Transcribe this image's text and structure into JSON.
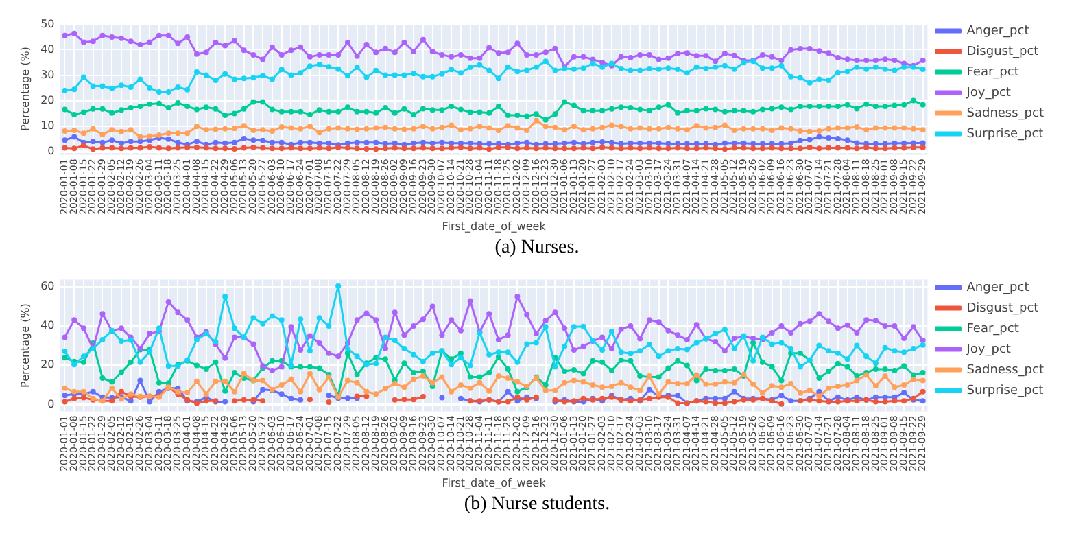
{
  "chart_data": [
    {
      "type": "line",
      "xlabel": "First_date_of_week",
      "ylabel": "Percentage (%)",
      "annotations": [
        "(a) Nurses."
      ],
      "categories": [
        "2020-01-01",
        "2020-01-08",
        "2020-01-15",
        "2020-01-22",
        "2020-01-29",
        "2020-02-05",
        "2020-02-12",
        "2020-02-19",
        "2020-02-26",
        "2020-03-04",
        "2020-03-11",
        "2020-03-18",
        "2020-03-25",
        "2020-04-01",
        "2020-04-08",
        "2020-04-15",
        "2020-04-22",
        "2020-04-29",
        "2020-05-06",
        "2020-05-13",
        "2020-05-20",
        "2020-05-27",
        "2020-06-03",
        "2020-06-10",
        "2020-06-17",
        "2020-06-24",
        "2020-07-01",
        "2020-07-08",
        "2020-07-15",
        "2020-07-22",
        "2020-07-29",
        "2020-08-05",
        "2020-08-12",
        "2020-08-19",
        "2020-08-26",
        "2020-09-02",
        "2020-09-09",
        "2020-09-16",
        "2020-09-23",
        "2020-09-30",
        "2020-10-07",
        "2020-10-14",
        "2020-10-21",
        "2020-10-28",
        "2020-11-04",
        "2020-11-11",
        "2020-11-18",
        "2020-11-25",
        "2020-12-02",
        "2020-12-09",
        "2020-12-16",
        "2020-12-23",
        "2020-12-30",
        "2021-01-06",
        "2021-01-13",
        "2021-01-20",
        "2021-01-27",
        "2021-02-03",
        "2021-02-10",
        "2021-02-17",
        "2021-02-24",
        "2021-03-03",
        "2021-03-10",
        "2021-03-17",
        "2021-03-24",
        "2021-03-31",
        "2021-04-07",
        "2021-04-14",
        "2021-04-21",
        "2021-04-28",
        "2021-05-05",
        "2021-05-12",
        "2021-05-19",
        "2021-05-26",
        "2021-06-02",
        "2021-06-09",
        "2021-06-16",
        "2021-06-23",
        "2021-06-30",
        "2021-07-07",
        "2021-07-14",
        "2021-07-21",
        "2021-07-28",
        "2021-08-04",
        "2021-08-11",
        "2021-08-18",
        "2021-08-25",
        "2021-09-01",
        "2021-09-08",
        "2021-09-15",
        "2021-09-22",
        "2021-09-29"
      ],
      "series": [
        {
          "name": "Anger_pct",
          "color": "#636efa",
          "values": [
            4.4,
            5.7,
            3.5,
            3.9,
            3.5,
            4.4,
            3.2,
            3.9,
            3.9,
            4.4,
            5.3,
            4.8,
            3.5,
            2.7,
            3.9,
            2.7,
            3.5,
            3.2,
            3.5,
            5,
            4.4,
            4.3,
            3.5,
            3.5,
            2.7,
            3.5,
            3.5,
            3.2,
            3.2,
            2.5,
            3.2,
            3.5,
            3.5,
            3.5,
            3,
            3.2,
            2.7,
            3.2,
            3.5,
            3.2,
            3.5,
            3.2,
            3.2,
            3.2,
            3,
            3,
            3,
            2.7,
            3.2,
            3.5,
            2.7,
            3,
            3,
            3.2,
            3.5,
            3,
            3.5,
            3.7,
            3.5,
            3,
            3.2,
            3.2,
            3.2,
            3.2,
            3,
            3,
            3,
            3,
            3,
            2.7,
            3.2,
            3.2,
            3.2,
            3,
            3,
            3,
            3,
            3.2,
            4.3,
            4.6,
            5.7,
            5.3,
            5,
            4.4,
            3.3,
            3,
            3,
            3,
            3.2,
            3.2,
            3.3,
            3.3
          ]
        },
        {
          "name": "Disgust_pct",
          "color": "#ef553b",
          "values": [
            1.4,
            1.2,
            2.3,
            0.9,
            1.4,
            1.4,
            1.2,
            1.4,
            1.4,
            1.8,
            1.4,
            1.2,
            1.4,
            1.6,
            1.6,
            1.4,
            1.2,
            1.2,
            1,
            1.4,
            1.6,
            1.4,
            1.2,
            1.2,
            1.4,
            1.2,
            1.2,
            1.4,
            1.2,
            1.6,
            1.4,
            1.2,
            1,
            0.9,
            1.2,
            1.4,
            1.2,
            1.2,
            1.4,
            1.2,
            1.2,
            1.4,
            1.6,
            1.2,
            1.4,
            0.9,
            1.6,
            1.6,
            1.2,
            1.4,
            1.2,
            1.4,
            1.2,
            1.2,
            1.2,
            1.4,
            1.2,
            1.6,
            1.4,
            1.2,
            1.4,
            1.2,
            1.4,
            1.2,
            1.2,
            1.4,
            1.2,
            1.2,
            1.4,
            1.2,
            0.9,
            1.4,
            1.4,
            1.2,
            1.2,
            1.4,
            1.2,
            1.2,
            1.2,
            1.6,
            1.2,
            1.4,
            1.4,
            1.4,
            1.2,
            1.6,
            1.2,
            1.2,
            1.4,
            1.4,
            1.6,
            1.6
          ]
        },
        {
          "name": "Fear_pct",
          "color": "#00cc96",
          "values": [
            16.5,
            14.5,
            15.4,
            16.7,
            16.7,
            15.1,
            16.3,
            17.2,
            17.7,
            18.6,
            18.9,
            17.2,
            19.1,
            17.7,
            16.5,
            17.4,
            16.7,
            14.2,
            14.9,
            16.7,
            19.5,
            19.5,
            16.5,
            15.6,
            15.6,
            15.6,
            14.5,
            16.3,
            15.6,
            15.6,
            17.4,
            15.6,
            15.6,
            15.1,
            17.2,
            15.1,
            16.7,
            14.5,
            16.8,
            16.3,
            16.3,
            17.7,
            16.5,
            15.4,
            15.4,
            15.1,
            17.7,
            14.2,
            14.2,
            13.8,
            14.7,
            12.4,
            14.7,
            19.5,
            18.1,
            16,
            16,
            16,
            16.7,
            17.4,
            17.2,
            16.5,
            16,
            17.4,
            18.3,
            15.1,
            16,
            16,
            16.8,
            16.5,
            15.6,
            16,
            16,
            15.6,
            16.5,
            16.8,
            17.4,
            16.5,
            17.7,
            17.7,
            17.7,
            17.7,
            17.7,
            18.3,
            16.8,
            18.6,
            17.7,
            17.7,
            18.1,
            18.3,
            20,
            18.3
          ]
        },
        {
          "name": "Joy_pct",
          "color": "#ab63fa",
          "values": [
            45.6,
            46.4,
            43,
            43.3,
            45.6,
            45,
            44.5,
            43.3,
            42,
            43,
            45.6,
            45.6,
            42.5,
            45,
            38.3,
            39,
            42.8,
            41.6,
            43.5,
            39.8,
            38,
            36.2,
            41,
            38,
            39.8,
            41,
            37.2,
            38,
            38,
            38,
            42.8,
            37.5,
            42,
            39,
            40.5,
            39,
            42.8,
            39.3,
            44,
            39.3,
            38,
            37.2,
            38,
            36.7,
            36.7,
            40.8,
            38.7,
            39,
            42.5,
            38,
            38,
            39,
            40.5,
            33.3,
            37.2,
            37.2,
            36.2,
            35,
            33.7,
            37.2,
            36.9,
            38,
            38,
            36.2,
            36.7,
            38.5,
            38.7,
            37.6,
            37.6,
            35.5,
            38.5,
            37.8,
            35.8,
            35.8,
            38,
            37.2,
            35.8,
            39.9,
            40.4,
            40.4,
            39.5,
            38.7,
            36.9,
            36.3,
            35.8,
            35.8,
            35.8,
            36.3,
            35.8,
            34.6,
            33.7,
            35.8
          ]
        },
        {
          "name": "Sadness_pct",
          "color": "#ffa15a",
          "values": [
            8,
            8.3,
            7.1,
            8.9,
            6.6,
            8.5,
            7.8,
            8.5,
            5.7,
            6,
            6.4,
            7.1,
            7.1,
            7.1,
            9.8,
            8.5,
            8.7,
            8.9,
            9,
            10.1,
            8.3,
            8.5,
            8,
            9.6,
            9.2,
            8.9,
            9.8,
            7.4,
            8.9,
            9.2,
            8.9,
            8.7,
            8.9,
            9.2,
            9.4,
            8.9,
            8.7,
            8.9,
            9.8,
            8.9,
            9.4,
            10.3,
            8.5,
            8.9,
            9.8,
            9.2,
            8.3,
            10.1,
            9.2,
            8.3,
            12.1,
            9.8,
            9.4,
            8.5,
            9.8,
            8.5,
            8.9,
            9.4,
            10.3,
            9.8,
            8.9,
            9.2,
            8.9,
            8.9,
            9.4,
            8.9,
            8.5,
            10.1,
            9.2,
            9.4,
            10.3,
            8.3,
            8.9,
            8.9,
            8.9,
            8.3,
            9.2,
            8.9,
            8,
            7.8,
            8,
            8.9,
            9.2,
            9.2,
            9.6,
            8.5,
            9.2,
            9.2,
            9.2,
            9.2,
            8.9,
            8.5
          ]
        },
        {
          "name": "Surprise_pct",
          "color": "#19d3f3",
          "values": [
            23.9,
            24.4,
            29.2,
            25.7,
            25.7,
            24.8,
            26,
            25.3,
            28.4,
            25,
            23.4,
            23.4,
            25.3,
            24.3,
            31.2,
            30,
            28,
            30.5,
            28.4,
            28.7,
            29,
            29.8,
            28.4,
            32.2,
            30,
            30.9,
            33.6,
            34.2,
            33.3,
            32.4,
            29.8,
            33.1,
            29.2,
            31.8,
            30,
            30,
            30,
            30.6,
            29.4,
            29.4,
            30.5,
            32.2,
            30.9,
            33.1,
            34,
            31.9,
            28.7,
            33.2,
            31.4,
            31.9,
            33.2,
            35.5,
            31.9,
            32.6,
            32.4,
            32.8,
            34.6,
            33.2,
            34.6,
            32.6,
            31.9,
            31.9,
            32.6,
            32.4,
            32.8,
            32.3,
            30.9,
            33.2,
            32.6,
            33.2,
            33.7,
            32.4,
            34.9,
            35.5,
            32.8,
            32.8,
            33.7,
            29.4,
            28.9,
            27,
            28.4,
            28,
            31,
            31.4,
            33.2,
            32.4,
            33.2,
            32.4,
            31.9,
            33.2,
            33.2,
            32.3
          ]
        }
      ],
      "ylim": [
        -1.3,
        50.5
      ],
      "yticks": [
        0,
        10,
        20,
        30,
        40,
        50
      ],
      "grid": true,
      "legend": "top right",
      "marker": "circle",
      "line_style": "solid"
    },
    {
      "type": "line",
      "xlabel": "First_date_of_week",
      "ylabel": "Percentage (%)",
      "annotations": [
        "(b) Nurse students."
      ],
      "categories": [
        "2020-01-01",
        "2020-01-08",
        "2020-01-15",
        "2020-01-22",
        "2020-01-29",
        "2020-02-05",
        "2020-02-12",
        "2020-02-19",
        "2020-02-26",
        "2020-03-04",
        "2020-03-11",
        "2020-03-18",
        "2020-03-25",
        "2020-04-01",
        "2020-04-08",
        "2020-04-15",
        "2020-04-22",
        "2020-04-29",
        "2020-05-06",
        "2020-05-13",
        "2020-05-20",
        "2020-05-27",
        "2020-06-03",
        "2020-06-10",
        "2020-06-17",
        "2020-06-24",
        "2020-07-01",
        "2020-07-08",
        "2020-07-15",
        "2020-07-22",
        "2020-07-29",
        "2020-08-05",
        "2020-08-12",
        "2020-08-19",
        "2020-08-26",
        "2020-09-02",
        "2020-09-09",
        "2020-09-16",
        "2020-09-23",
        "2020-09-30",
        "2020-10-07",
        "2020-10-14",
        "2020-10-21",
        "2020-10-28",
        "2020-11-04",
        "2020-11-11",
        "2020-11-18",
        "2020-11-25",
        "2020-12-02",
        "2020-12-09",
        "2020-12-16",
        "2020-12-23",
        "2020-12-30",
        "2021-01-06",
        "2021-01-13",
        "2021-01-20",
        "2021-01-27",
        "2021-02-03",
        "2021-02-10",
        "2021-02-17",
        "2021-02-24",
        "2021-03-03",
        "2021-03-10",
        "2021-03-17",
        "2021-03-24",
        "2021-03-31",
        "2021-04-07",
        "2021-04-14",
        "2021-04-21",
        "2021-04-28",
        "2021-05-05",
        "2021-05-12",
        "2021-05-19",
        "2021-05-26",
        "2021-06-02",
        "2021-06-09",
        "2021-06-16",
        "2021-06-23",
        "2021-06-30",
        "2021-07-07",
        "2021-07-14",
        "2021-07-21",
        "2021-07-28",
        "2021-08-04",
        "2021-08-11",
        "2021-08-18",
        "2021-08-25",
        "2021-09-01",
        "2021-09-08",
        "2021-09-15",
        "2021-09-22",
        "2021-09-29"
      ],
      "series": [
        {
          "name": "Anger_pct",
          "color": "#636efa",
          "values": [
            4.6,
            5.3,
            5.3,
            6.5,
            3.7,
            3.5,
            3.7,
            1.8,
            12.2,
            1.4,
            6.5,
            8.3,
            8.3,
            1.8,
            1.4,
            3.7,
            1.4,
            1.4,
            null,
            null,
            1.4,
            7.6,
            7.2,
            5.3,
            3,
            2.3,
            null,
            null,
            4.6,
            3.2,
            3.2,
            3.2,
            null,
            null,
            null,
            null,
            null,
            null,
            null,
            null,
            3.5,
            null,
            3,
            1.8,
            1.4,
            2.3,
            1.4,
            6.5,
            1.8,
            3.7,
            3,
            null,
            1.4,
            2.3,
            1.4,
            1.4,
            3,
            1.8,
            4.6,
            2.3,
            3,
            1.8,
            7.6,
            4.2,
            4.6,
            4.6,
            0.7,
            1.8,
            3,
            3,
            3,
            6.5,
            3,
            3,
            3,
            2.3,
            4.6,
            1.8,
            1.8,
            3,
            6.5,
            1.8,
            3.7,
            2.3,
            3.7,
            2.3,
            3.7,
            3.7,
            3.7,
            6,
            2.3,
            1.8
          ]
        },
        {
          "name": "Disgust_pct",
          "color": "#ef553b",
          "values": [
            1.4,
            3,
            3.5,
            2.3,
            1.8,
            1.8,
            6.5,
            4.2,
            3.7,
            4.2,
            4.2,
            8.8,
            5.3,
            2.3,
            0.7,
            1.8,
            1.8,
            null,
            1.8,
            2.3,
            2.3,
            1.8,
            null,
            null,
            null,
            null,
            2.5,
            null,
            1.2,
            null,
            null,
            4.2,
            4.2,
            null,
            null,
            2.3,
            2.5,
            2.5,
            4,
            null,
            null,
            null,
            null,
            1.8,
            1.8,
            2.3,
            1.4,
            1.4,
            3.7,
            2.3,
            3.7,
            null,
            2.3,
            1.4,
            1.8,
            3,
            2.3,
            3,
            3.7,
            2.3,
            1.8,
            2.3,
            3,
            3.7,
            3.7,
            0.7,
            0.7,
            1.8,
            1.4,
            0.7,
            0.7,
            1.4,
            2.3,
            2.3,
            3,
            1.8,
            0.2,
            null,
            1.8,
            2.3,
            1.8,
            1.4,
            1.4,
            1.8,
            1.8,
            2.3,
            1.4,
            1.4,
            1.8,
            1.8,
            3,
            6.5
          ]
        },
        {
          "name": "Fear_pct",
          "color": "#00cc96",
          "values": [
            23.8,
            21.9,
            21.5,
            31.2,
            13.4,
            11.5,
            16.4,
            21.5,
            27.9,
            27.9,
            11.1,
            10.9,
            20.3,
            22.2,
            19.9,
            18,
            21.5,
            6.9,
            16.2,
            13.4,
            12.2,
            18.5,
            22.2,
            22.2,
            19.2,
            19.2,
            19.2,
            18.5,
            15.2,
            4.6,
            26.1,
            15.2,
            21,
            23.8,
            23.1,
            12.5,
            21,
            16.2,
            16.9,
            9.2,
            27.3,
            23.1,
            26.1,
            13.9,
            13.9,
            16.2,
            24.2,
            18,
            6.5,
            8.8,
            13.9,
            9.9,
            23.8,
            16.9,
            17.6,
            15.7,
            22.2,
            21.5,
            17.3,
            22.6,
            22.2,
            14.5,
            13.9,
            13.9,
            18.5,
            22.2,
            19.9,
            12.2,
            18,
            17.3,
            17.3,
            18,
            14.5,
            31.4,
            21.5,
            19.2,
            12.2,
            26.1,
            26.1,
            22.6,
            13.4,
            16.9,
            20.8,
            19.2,
            14.5,
            16.2,
            18,
            18,
            17.3,
            19.6,
            15,
            16.2
          ]
        },
        {
          "name": "Joy_pct",
          "color": "#ab63fa",
          "values": [
            34.2,
            43,
            38.8,
            28.4,
            46.2,
            37.4,
            38.8,
            34.2,
            28.4,
            36,
            37.2,
            52.2,
            46.9,
            43,
            34.2,
            37,
            30.7,
            23.6,
            34.2,
            34.2,
            30.7,
            19.6,
            17.3,
            19.2,
            39.5,
            27.7,
            34.9,
            31.2,
            26.1,
            24.5,
            31.2,
            43,
            46.4,
            43,
            28.4,
            46.9,
            35.3,
            40,
            43.4,
            49.9,
            35.3,
            43,
            37.6,
            52.7,
            37,
            46.2,
            33,
            35.3,
            55,
            45.7,
            36,
            42.7,
            46.9,
            38.8,
            27.7,
            29.6,
            32.3,
            34.2,
            28.4,
            38.3,
            40,
            33.5,
            43,
            42,
            37.6,
            35.3,
            33,
            40.6,
            33.5,
            31.9,
            27.3,
            33.7,
            34.6,
            33.7,
            33,
            36.5,
            40,
            36.5,
            41.1,
            42.3,
            46.2,
            42.3,
            38.8,
            40.4,
            36.5,
            43,
            42.7,
            40,
            40,
            33.7,
            39.5,
            32.6
          ]
        },
        {
          "name": "Sadness_pct",
          "color": "#ffa15a",
          "values": [
            8.3,
            6.5,
            6.5,
            3,
            1.8,
            8.3,
            2.8,
            5.3,
            4.2,
            4.2,
            3.7,
            8.8,
            6.5,
            6,
            11.8,
            5.3,
            11.8,
            11.8,
            6.5,
            15.7,
            12.2,
            12.2,
            7.6,
            9.9,
            12.9,
            6.5,
            15.7,
            7.6,
            13.9,
            3.7,
            12.2,
            11.1,
            6.5,
            5.3,
            8.1,
            10.6,
            8.8,
            12.9,
            14.5,
            11.1,
            13.9,
            6.5,
            9.9,
            8.3,
            11.1,
            6.9,
            14.5,
            13.4,
            11.5,
            9.2,
            13.4,
            7.2,
            7.2,
            11.1,
            12.2,
            11.5,
            9.9,
            8.8,
            9.2,
            11.1,
            8.8,
            7.2,
            14.5,
            5.3,
            11.5,
            10.6,
            10.6,
            15,
            10.4,
            10.4,
            11.5,
            11.1,
            15.2,
            10.4,
            5.8,
            9.5,
            8.8,
            10.6,
            5.8,
            7.2,
            4.2,
            8.3,
            9.2,
            9.9,
            12.2,
            15,
            9.5,
            14.5,
            8.8,
            9.9,
            12.7,
            12.2
          ]
        },
        {
          "name": "Surprise_pct",
          "color": "#19d3f3",
          "values": [
            27,
            20.3,
            24.5,
            28.4,
            33,
            37.6,
            32.3,
            32.8,
            21.5,
            26.8,
            38.8,
            19.6,
            19.6,
            22.6,
            33,
            36,
            31.9,
            55,
            38.8,
            34.2,
            44.1,
            41.1,
            45,
            43,
            19.9,
            43.4,
            27.3,
            44.1,
            40,
            60.3,
            28.4,
            24.5,
            20.3,
            20.8,
            34.2,
            32.6,
            28.4,
            25.4,
            21.9,
            26.1,
            27.3,
            20.3,
            23.8,
            19.9,
            36.5,
            25.4,
            26.6,
            26.6,
            21.5,
            30.7,
            31.4,
            39.5,
            19.2,
            29.6,
            39.5,
            39.7,
            32.6,
            27.7,
            37.2,
            26.6,
            25.9,
            27.3,
            30.5,
            24.5,
            27.3,
            28.4,
            27.9,
            31.4,
            33.5,
            36,
            38.1,
            28.4,
            34.9,
            22.2,
            34.2,
            30.7,
            31.4,
            28.4,
            19.2,
            22.6,
            30,
            27.3,
            26.1,
            23.1,
            30,
            24.5,
            21,
            28.9,
            27.3,
            26.6,
            28.4,
            30.3
          ]
        }
      ],
      "ylim": [
        -3.5,
        63.5
      ],
      "yticks": [
        0,
        20,
        40,
        60
      ],
      "grid": true,
      "legend": "top right",
      "marker": "circle",
      "line_style": "solid"
    }
  ]
}
